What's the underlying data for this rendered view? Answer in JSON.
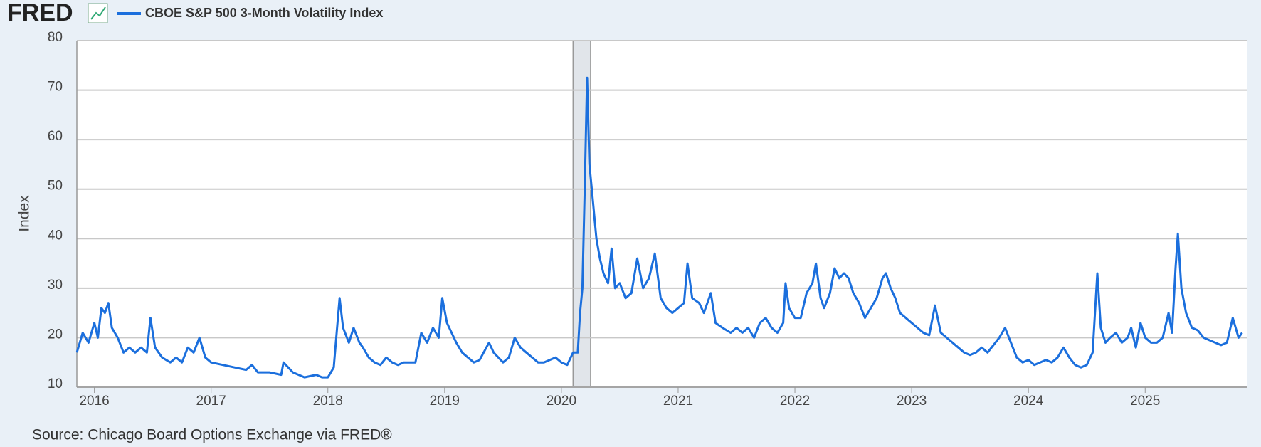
{
  "logo": "FRED",
  "source": "Source: Chicago Board Options Exchange via FRED®",
  "chart_data": {
    "type": "line",
    "y_label": "Index",
    "x": [
      2015.85,
      2015.9,
      2015.95,
      2016.0,
      2016.03,
      2016.06,
      2016.09,
      2016.12,
      2016.15,
      2016.2,
      2016.25,
      2016.3,
      2016.35,
      2016.4,
      2016.45,
      2016.48,
      2016.52,
      2016.58,
      2016.65,
      2016.7,
      2016.75,
      2016.8,
      2016.85,
      2016.9,
      2016.95,
      2017.0,
      2017.1,
      2017.2,
      2017.3,
      2017.35,
      2017.4,
      2017.5,
      2017.6,
      2017.62,
      2017.7,
      2017.8,
      2017.9,
      2017.95,
      2018.0,
      2018.05,
      2018.1,
      2018.13,
      2018.18,
      2018.22,
      2018.27,
      2018.3,
      2018.35,
      2018.4,
      2018.45,
      2018.5,
      2018.55,
      2018.6,
      2018.65,
      2018.7,
      2018.75,
      2018.8,
      2018.85,
      2018.9,
      2018.95,
      2018.98,
      2019.02,
      2019.1,
      2019.15,
      2019.2,
      2019.25,
      2019.3,
      2019.38,
      2019.42,
      2019.5,
      2019.55,
      2019.6,
      2019.65,
      2019.7,
      2019.75,
      2019.8,
      2019.85,
      2019.9,
      2019.95,
      2020.0,
      2020.05,
      2020.1,
      2020.14,
      2020.16,
      2020.18,
      2020.2,
      2020.22,
      2020.24,
      2020.26,
      2020.3,
      2020.33,
      2020.36,
      2020.4,
      2020.43,
      2020.46,
      2020.5,
      2020.55,
      2020.6,
      2020.65,
      2020.7,
      2020.75,
      2020.8,
      2020.85,
      2020.9,
      2020.95,
      2021.0,
      2021.05,
      2021.08,
      2021.12,
      2021.18,
      2021.22,
      2021.28,
      2021.32,
      2021.38,
      2021.45,
      2021.5,
      2021.55,
      2021.6,
      2021.65,
      2021.7,
      2021.75,
      2021.8,
      2021.85,
      2021.9,
      2021.92,
      2021.95,
      2022.0,
      2022.05,
      2022.1,
      2022.15,
      2022.18,
      2022.22,
      2022.25,
      2022.3,
      2022.34,
      2022.38,
      2022.42,
      2022.46,
      2022.5,
      2022.55,
      2022.6,
      2022.65,
      2022.7,
      2022.75,
      2022.78,
      2022.82,
      2022.86,
      2022.9,
      2022.95,
      2023.0,
      2023.05,
      2023.1,
      2023.15,
      2023.2,
      2023.25,
      2023.3,
      2023.35,
      2023.4,
      2023.45,
      2023.5,
      2023.55,
      2023.6,
      2023.65,
      2023.75,
      2023.8,
      2023.85,
      2023.9,
      2023.95,
      2024.0,
      2024.05,
      2024.1,
      2024.15,
      2024.2,
      2024.25,
      2024.3,
      2024.35,
      2024.4,
      2024.45,
      2024.5,
      2024.55,
      2024.59,
      2024.62,
      2024.66,
      2024.7,
      2024.75,
      2024.8,
      2024.85,
      2024.88,
      2024.92,
      2024.96,
      2025.0,
      2025.05,
      2025.1,
      2025.15,
      2025.2,
      2025.23,
      2025.26,
      2025.28,
      2025.31,
      2025.35,
      2025.4,
      2025.45,
      2025.5,
      2025.55,
      2025.6,
      2025.65,
      2025.7,
      2025.75,
      2025.8,
      2025.83
    ],
    "series": [
      {
        "name": "CBOE S&P 500 3-Month Volatility Index",
        "color": "#1b6fdd",
        "values": [
          17,
          21,
          19,
          23,
          20,
          26,
          25,
          27,
          22,
          20,
          17,
          18,
          17,
          18,
          17,
          24,
          18,
          16,
          15,
          16,
          15,
          18,
          17,
          20,
          16,
          15,
          14.5,
          14,
          13.5,
          14.5,
          13,
          13,
          12.5,
          15,
          13,
          12,
          12.5,
          12,
          12,
          14,
          28,
          22,
          19,
          22,
          19,
          18,
          16,
          15,
          14.5,
          16,
          15,
          14.5,
          15,
          15,
          15,
          21,
          19,
          22,
          20,
          28,
          23,
          19,
          17,
          16,
          15,
          15.5,
          19,
          17,
          15,
          16,
          20,
          18,
          17,
          16,
          15,
          15,
          15.5,
          16,
          15,
          14.5,
          17,
          17,
          25,
          30,
          50,
          72.5,
          55,
          50,
          40,
          36,
          33,
          31,
          38,
          30,
          31,
          28,
          29,
          36,
          30,
          32,
          37,
          28,
          26,
          25,
          26,
          27,
          35,
          28,
          27,
          25,
          29,
          23,
          22,
          21,
          22,
          21,
          22,
          20,
          23,
          24,
          22,
          21,
          23,
          31,
          26,
          24,
          24,
          29,
          31,
          35,
          28,
          26,
          29,
          34,
          32,
          33,
          32,
          29,
          27,
          24,
          26,
          28,
          32,
          33,
          30,
          28,
          25,
          24,
          23,
          22,
          21,
          20.5,
          26.5,
          21,
          20,
          19,
          18,
          17,
          16.5,
          17,
          18,
          17,
          20,
          22,
          19,
          16,
          15,
          15.5,
          14.5,
          15,
          15.5,
          15,
          16,
          18,
          16,
          14.5,
          14,
          14.5,
          17,
          33,
          22,
          19,
          20,
          21,
          19,
          20,
          22,
          18,
          23,
          20,
          19,
          19,
          20,
          25,
          21,
          34,
          41,
          30,
          25,
          22,
          21.5,
          20,
          19.5,
          19,
          18.5,
          19,
          24,
          20,
          21
        ]
      }
    ],
    "recession": [
      2020.1,
      2020.25
    ],
    "xlim": [
      2015.85,
      2025.87
    ],
    "xticks": [
      2016,
      2017,
      2018,
      2019,
      2020,
      2021,
      2022,
      2023,
      2024,
      2025
    ],
    "ylim": [
      10,
      80
    ],
    "yticks": [
      10,
      20,
      30,
      40,
      50,
      60,
      70,
      80
    ],
    "grid": true
  }
}
